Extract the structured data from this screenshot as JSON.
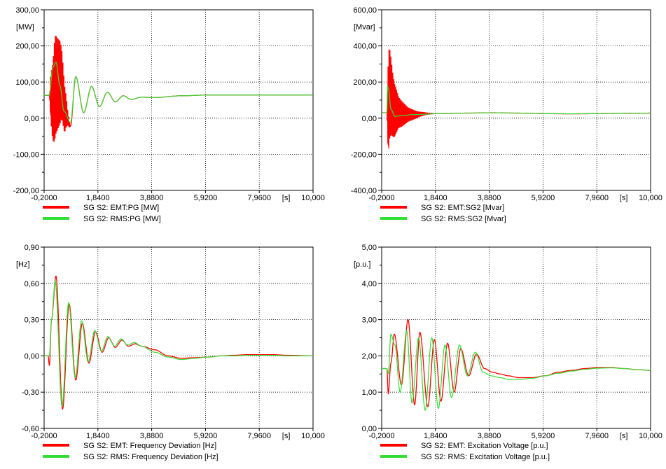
{
  "colors": {
    "emt": "#ff0000",
    "rms": "#33dd33",
    "grid": "#000000",
    "axis": "#000000"
  },
  "chart_data": [
    {
      "type": "line",
      "unit_label": "[MW]",
      "xunit": "[s]",
      "xlim": [
        -0.2,
        10.0
      ],
      "ylim": [
        -200,
        300
      ],
      "xticks": [
        "-0,2000",
        "1,8400",
        "3,8800",
        "5,9200",
        "7,9600",
        "10,000"
      ],
      "yticks": [
        "300,00",
        "200,00",
        "100,00",
        "0,00",
        "-100,00",
        "-200,00"
      ],
      "legend": [
        "SG S2: EMT:PG [MW]",
        "SG S2: RMS:PG [MW]"
      ],
      "series": [
        {
          "name": "SG S2: EMT:PG [MW]",
          "color": "#ff0000",
          "x": [
            -0.2,
            0.0,
            0.02,
            0.12,
            0.25,
            0.45,
            0.6,
            0.8,
            1.0,
            1.3,
            1.6,
            1.9,
            2.2,
            2.5,
            2.8,
            3.1,
            3.5,
            4.0,
            5.0,
            6.0,
            7.0,
            8.0,
            9.0,
            10.0
          ],
          "y": [
            63,
            63,
            60,
            40,
            80,
            90,
            20,
            -22,
            115,
            15,
            88,
            32,
            72,
            45,
            62,
            52,
            58,
            57,
            62,
            64,
            64,
            64,
            64,
            64
          ],
          "env": [
            [
              0.0,
              0,
              0.05
            ],
            [
              0.05,
              70,
              0.2
            ],
            [
              0.2,
              155,
              0.25
            ],
            [
              0.4,
              125,
              0.25
            ],
            [
              0.55,
              80,
              0.25
            ],
            [
              0.7,
              20,
              0.25
            ],
            [
              0.8,
              0,
              0.25
            ]
          ]
        },
        {
          "name": "SG S2: RMS:PG [MW]",
          "color": "#33dd33",
          "x": [
            -0.2,
            0.0,
            0.02,
            0.12,
            0.25,
            0.4,
            0.55,
            0.8,
            1.0,
            1.3,
            1.6,
            1.9,
            2.2,
            2.5,
            2.8,
            3.1,
            3.5,
            4.0,
            5.0,
            6.0,
            7.0,
            8.0,
            9.0,
            10.0
          ],
          "y": [
            63,
            63,
            75,
            140,
            155,
            90,
            20,
            -12,
            115,
            15,
            88,
            32,
            72,
            45,
            62,
            52,
            58,
            57,
            62,
            64,
            64,
            64,
            64,
            64
          ]
        }
      ]
    },
    {
      "type": "line",
      "unit_label": "[Mvar]",
      "xunit": "[s]",
      "xlim": [
        -0.2,
        10.0
      ],
      "ylim": [
        -400,
        600
      ],
      "xticks": [
        "-0,2000",
        "1,8400",
        "3,8800",
        "5,9200",
        "7,9600",
        "10,000"
      ],
      "yticks": [
        "600,00",
        "400,00",
        "200,00",
        "0,00",
        "-200,00",
        "-400,00"
      ],
      "legend": [
        "SG S2: EMT:SG2 [Mvar]",
        "SG S2: RMS:SG2 [Mvar]"
      ],
      "series": [
        {
          "name": "SG S2: EMT:SG2 [Mvar]",
          "color": "#ff0000",
          "x": [
            -0.2,
            0.0,
            0.03,
            0.1,
            0.3,
            0.6,
            1.0,
            1.5,
            2.0,
            3.0,
            4.0,
            5.0,
            6.0,
            7.0,
            8.0,
            9.0,
            10.0
          ],
          "y": [
            30,
            30,
            40,
            120,
            30,
            20,
            20,
            25,
            25,
            28,
            30,
            28,
            25,
            24,
            25,
            27,
            28
          ],
          "env": [
            [
              0.0,
              0,
              0.05
            ],
            [
              0.05,
              300,
              0.2
            ],
            [
              0.2,
              200,
              0.3
            ],
            [
              0.45,
              90,
              0.3
            ],
            [
              0.8,
              40,
              0.3
            ],
            [
              1.2,
              15,
              0.3
            ],
            [
              1.5,
              5,
              0.3
            ],
            [
              1.8,
              0,
              0.3
            ]
          ]
        },
        {
          "name": "SG S2: RMS:SG2 [Mvar]",
          "color": "#33dd33",
          "x": [
            -0.2,
            0.0,
            0.02,
            0.06,
            0.15,
            0.3,
            0.6,
            1.0,
            2.0,
            3.0,
            4.0,
            5.0,
            6.0,
            7.0,
            8.0,
            9.0,
            10.0
          ],
          "y": [
            30,
            30,
            180,
            160,
            50,
            10,
            15,
            20,
            25,
            28,
            30,
            28,
            25,
            24,
            25,
            27,
            28
          ]
        }
      ]
    },
    {
      "type": "line",
      "unit_label": "[Hz]",
      "xunit": "[s]",
      "xlim": [
        -0.2,
        10.0
      ],
      "ylim": [
        -0.6,
        0.9
      ],
      "xticks": [
        "-0,2000",
        "1,8400",
        "3,8800",
        "5,9200",
        "7,9600",
        "10,000"
      ],
      "yticks": [
        "0,90",
        "0,60",
        "0,30",
        "0,00",
        "-0,30",
        "-0,60"
      ],
      "legend": [
        "SG S2: EMT: Frequency Deviation [Hz]",
        "SG S2: RMS: Frequency Deviation [Hz]"
      ],
      "series": [
        {
          "name": "SG S2: EMT: Frequency Deviation [Hz]",
          "color": "#ff0000",
          "x": [
            -0.2,
            -0.05,
            0.0,
            0.08,
            0.25,
            0.5,
            0.75,
            1.0,
            1.25,
            1.5,
            1.75,
            2.0,
            2.25,
            2.5,
            2.75,
            3.0,
            3.25,
            3.5,
            4.0,
            4.5,
            5.0,
            5.5,
            6.0,
            6.5,
            7.0,
            7.5,
            8.0,
            8.5,
            9.0,
            10.0
          ],
          "y": [
            0.0,
            0.0,
            -0.08,
            0.3,
            0.66,
            -0.44,
            0.43,
            -0.2,
            0.27,
            -0.06,
            0.2,
            0.03,
            0.15,
            0.07,
            0.13,
            0.08,
            0.1,
            0.08,
            0.05,
            0.0,
            -0.02,
            -0.015,
            -0.01,
            0.0,
            0.005,
            0.01,
            0.01,
            0.01,
            0.005,
            0.0
          ]
        },
        {
          "name": "SG S2: RMS: Frequency Deviation [Hz]",
          "color": "#33dd33",
          "x": [
            -0.2,
            -0.05,
            0.0,
            0.08,
            0.22,
            0.48,
            0.73,
            0.98,
            1.22,
            1.47,
            1.72,
            1.97,
            2.22,
            2.47,
            2.72,
            2.97,
            3.22,
            3.5,
            4.0,
            4.5,
            5.0,
            5.5,
            6.0,
            6.5,
            7.0,
            7.5,
            8.0,
            8.5,
            9.0,
            10.0
          ],
          "y": [
            0.0,
            0.0,
            0.0,
            0.3,
            0.62,
            -0.42,
            0.44,
            -0.18,
            0.29,
            -0.05,
            0.21,
            0.04,
            0.16,
            0.08,
            0.14,
            0.09,
            0.11,
            0.08,
            0.03,
            -0.01,
            -0.03,
            -0.02,
            -0.01,
            0.0,
            0.0,
            0.005,
            0.005,
            0.005,
            0.0,
            0.0
          ]
        }
      ]
    },
    {
      "type": "line",
      "unit_label": "[p.u.]",
      "xunit": "[s]",
      "xlim": [
        -0.2,
        10.0
      ],
      "ylim": [
        0.0,
        5.0
      ],
      "xticks": [
        "-0,2000",
        "1,8400",
        "3,8800",
        "5,9200",
        "7,9600",
        "10,000"
      ],
      "yticks": [
        "5,00",
        "4,00",
        "3,00",
        "2,00",
        "1,00",
        "0,00"
      ],
      "legend": [
        "SG S2: EMT: Excitation Voltage [p.u.]",
        "SG S2: RMS: Excitation Voltage [p.u.]"
      ],
      "series": [
        {
          "name": "SG S2: EMT: Excitation Voltage [p.u.]",
          "color": "#ff0000",
          "x": [
            -0.2,
            0.0,
            0.05,
            0.15,
            0.28,
            0.55,
            0.8,
            1.05,
            1.25,
            1.55,
            1.8,
            2.05,
            2.3,
            2.55,
            2.8,
            3.1,
            3.4,
            3.7,
            4.0,
            4.3,
            4.6,
            5.0,
            5.5,
            6.0,
            6.5,
            7.0,
            7.5,
            8.0,
            8.5,
            9.0,
            9.5,
            10.0
          ],
          "y": [
            1.65,
            1.65,
            0.95,
            1.8,
            2.6,
            1.2,
            3.0,
            0.65,
            2.65,
            0.6,
            2.45,
            0.75,
            2.35,
            1.0,
            2.2,
            1.45,
            2.05,
            1.65,
            1.55,
            1.5,
            1.45,
            1.4,
            1.4,
            1.45,
            1.55,
            1.6,
            1.65,
            1.68,
            1.68,
            1.65,
            1.62,
            1.6
          ]
        },
        {
          "name": "SG S2: RMS: Excitation Voltage [p.u.]",
          "color": "#33dd33",
          "x": [
            -0.2,
            0.0,
            0.05,
            0.15,
            0.3,
            0.5,
            0.75,
            0.95,
            1.2,
            1.45,
            1.7,
            1.95,
            2.2,
            2.45,
            2.75,
            3.05,
            3.35,
            3.65,
            3.95,
            4.3,
            4.6,
            5.0,
            5.5,
            6.0,
            6.5,
            7.0,
            7.5,
            8.0,
            8.5,
            9.0,
            9.5,
            10.0
          ],
          "y": [
            1.65,
            1.65,
            1.5,
            2.6,
            2.3,
            1.0,
            2.7,
            0.7,
            2.5,
            0.5,
            2.5,
            0.55,
            2.3,
            0.85,
            2.3,
            1.45,
            2.1,
            1.55,
            1.45,
            1.4,
            1.35,
            1.35,
            1.38,
            1.45,
            1.52,
            1.58,
            1.63,
            1.66,
            1.67,
            1.65,
            1.62,
            1.6
          ]
        }
      ]
    }
  ]
}
